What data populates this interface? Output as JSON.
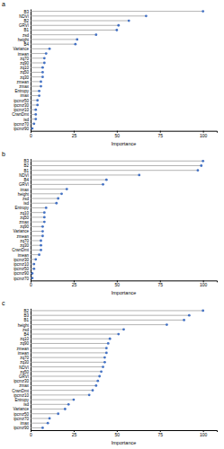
{
  "chart_data": [
    {
      "type": "lollipop",
      "orientation": "horizontal",
      "title": "a",
      "xlabel": "Importance",
      "color": "#4472C4",
      "categories": [
        "B3",
        "NDVI",
        "B2",
        "GRVI",
        "B1",
        "zsd",
        "height",
        "B4",
        "Variance",
        "imean",
        "zq70",
        "zq90",
        "zq10",
        "zq50",
        "zq30",
        "zmean",
        "zmax",
        "Entropy",
        "imax",
        "ipcmz50",
        "ipcmz30",
        "ipcmz10",
        "CrwnDmt",
        "isd",
        "ipcmz70",
        "ipcmz90"
      ],
      "values": [
        100,
        67,
        57,
        51,
        50,
        38,
        27,
        26,
        11,
        9,
        8,
        8,
        7,
        7,
        7,
        6,
        6,
        5,
        5,
        4,
        4,
        3,
        3,
        3,
        2,
        1
      ],
      "xlim": [
        0,
        108
      ],
      "xticks": [
        0,
        25,
        50,
        75,
        100
      ]
    },
    {
      "type": "lollipop",
      "orientation": "horizontal",
      "title": "b",
      "xlabel": "Importance",
      "color": "#4472C4",
      "categories": [
        "B3",
        "B2",
        "B1",
        "NDVI",
        "B4",
        "GRVI",
        "imax",
        "height",
        "zsd",
        "isd",
        "Entropy",
        "zq10",
        "zq50",
        "zmax",
        "zq90",
        "Variance",
        "zmean",
        "zq70",
        "zq30",
        "CrwnDmt",
        "imean",
        "ipcmz30",
        "ipcmz10",
        "ipcmz50",
        "ipcmz90",
        "ipcmz70"
      ],
      "values": [
        100,
        99,
        97,
        63,
        44,
        42,
        21,
        18,
        16,
        15,
        9,
        8,
        8,
        8,
        7,
        7,
        7,
        6,
        6,
        6,
        5,
        3,
        2,
        2,
        1,
        1
      ],
      "xlim": [
        0,
        108
      ],
      "xticks": [
        0,
        25,
        50,
        75,
        100
      ]
    },
    {
      "type": "lollipop",
      "orientation": "horizontal",
      "title": "c",
      "xlabel": "Importance",
      "color": "#4472C4",
      "categories": [
        "B2",
        "B3",
        "B1",
        "height",
        "zsd",
        "B4",
        "zq10",
        "zq90",
        "zmean",
        "imean",
        "zq70",
        "zq30",
        "NDVI",
        "zq50",
        "GRVI",
        "ipcmz30",
        "zmax",
        "CrwnDmt",
        "ipcmz10",
        "Entropy",
        "isd",
        "Variance",
        "ipcmz50",
        "ipcmz70",
        "imax",
        "ipcmz90"
      ],
      "values": [
        100,
        92,
        89,
        79,
        54,
        51,
        46,
        45,
        44,
        44,
        43,
        43,
        42,
        41,
        40,
        39,
        38,
        36,
        34,
        25,
        22,
        20,
        16,
        11,
        10,
        7
      ],
      "xlim": [
        0,
        108
      ],
      "xticks": [
        0,
        25,
        50,
        75,
        100
      ]
    }
  ]
}
